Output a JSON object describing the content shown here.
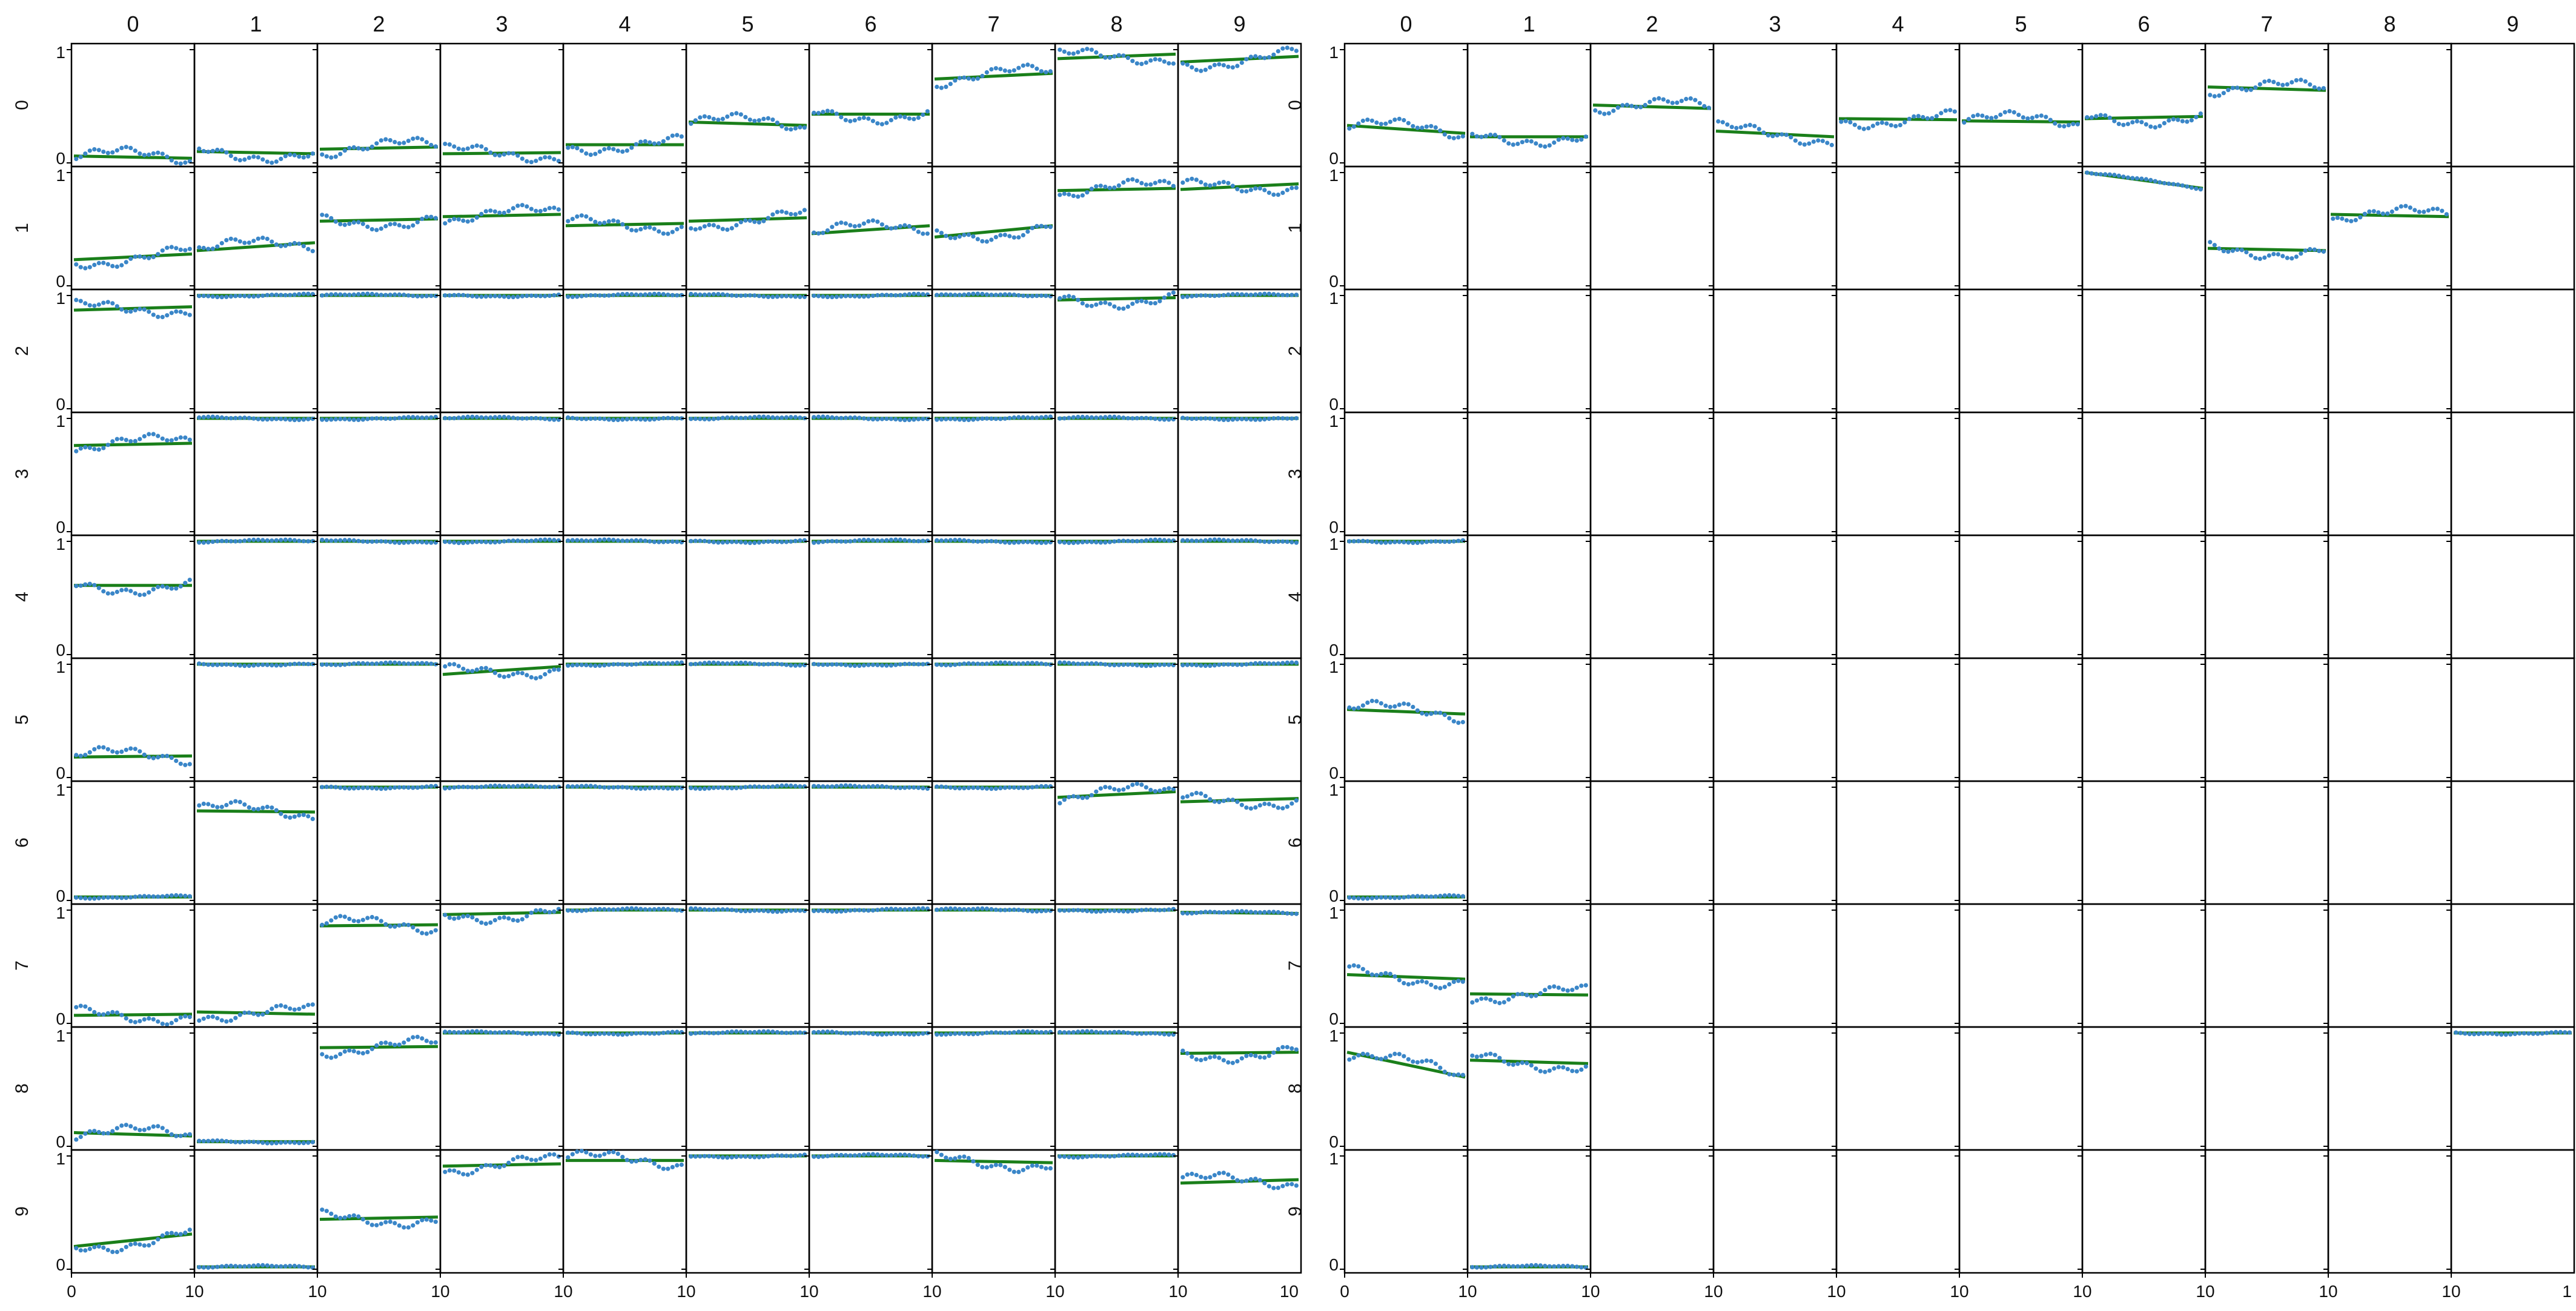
{
  "chart_data": [
    {
      "type": "scatter",
      "layout": "small-multiples grid",
      "columns": [
        "0",
        "1",
        "2",
        "3",
        "4",
        "5",
        "6",
        "7",
        "8",
        "9"
      ],
      "rows": [
        "0",
        "1",
        "2",
        "3",
        "4",
        "5",
        "6",
        "7",
        "8",
        "9"
      ],
      "y_tick_labels": [
        "0",
        "1"
      ],
      "x_tick_labels": [
        "0",
        "10"
      ],
      "ylim": [
        0,
        1
      ],
      "xlim": [
        0,
        10
      ],
      "colors": {
        "points": "#3a86c8",
        "trend": "#1a7f1a",
        "frame": "#000000"
      },
      "cells": [
        [
          [
            0.05,
            0.03
          ],
          [
            0.09,
            0.07
          ],
          [
            0.11,
            0.13
          ],
          [
            0.07,
            0.08
          ],
          [
            0.15,
            0.15
          ],
          [
            0.35,
            0.32
          ],
          [
            0.42,
            0.42
          ],
          [
            0.73,
            0.78
          ],
          [
            0.91,
            0.95
          ],
          [
            0.88,
            0.93
          ]
        ],
        [
          [
            0.22,
            0.27
          ],
          [
            0.3,
            0.37
          ],
          [
            0.56,
            0.58
          ],
          [
            0.6,
            0.62
          ],
          [
            0.52,
            0.54
          ],
          [
            0.56,
            0.59
          ],
          [
            0.45,
            0.52
          ],
          [
            0.42,
            0.52
          ],
          [
            0.83,
            0.85
          ],
          [
            0.84,
            0.89
          ]
        ],
        [
          [
            0.86,
            0.89
          ],
          [
            0.99,
            0.99
          ],
          [
            0.99,
            0.99
          ],
          [
            0.99,
            0.99
          ],
          [
            0.99,
            0.99
          ],
          [
            0.99,
            0.99
          ],
          [
            0.99,
            0.99
          ],
          [
            0.99,
            0.99
          ],
          [
            0.95,
            0.97
          ],
          [
            0.99,
            0.99
          ]
        ],
        [
          [
            0.75,
            0.77
          ],
          [
            0.99,
            0.99
          ],
          [
            0.99,
            0.99
          ],
          [
            0.99,
            0.99
          ],
          [
            0.99,
            0.99
          ],
          [
            0.99,
            0.99
          ],
          [
            0.99,
            0.99
          ],
          [
            0.99,
            0.99
          ],
          [
            0.99,
            0.99
          ],
          [
            0.99,
            0.99
          ]
        ],
        [
          [
            0.6,
            0.6
          ],
          [
            0.99,
            0.99
          ],
          [
            0.99,
            0.99
          ],
          [
            0.99,
            0.99
          ],
          [
            0.99,
            0.99
          ],
          [
            0.99,
            0.99
          ],
          [
            0.99,
            0.99
          ],
          [
            0.99,
            0.99
          ],
          [
            0.99,
            0.99
          ],
          [
            0.99,
            0.99
          ]
        ],
        [
          [
            0.17,
            0.18
          ],
          [
            0.99,
            0.99
          ],
          [
            0.99,
            0.99
          ],
          [
            0.9,
            0.97
          ],
          [
            0.99,
            0.99
          ],
          [
            0.99,
            0.99
          ],
          [
            0.99,
            0.99
          ],
          [
            0.99,
            0.99
          ],
          [
            0.99,
            0.99
          ],
          [
            0.99,
            0.99
          ]
        ],
        [
          [
            0.02,
            0.02
          ],
          [
            0.78,
            0.77
          ],
          [
            0.99,
            0.99
          ],
          [
            0.99,
            0.99
          ],
          [
            0.99,
            0.99
          ],
          [
            0.99,
            0.99
          ],
          [
            0.99,
            0.99
          ],
          [
            0.99,
            0.99
          ],
          [
            0.9,
            0.95
          ],
          [
            0.86,
            0.89
          ]
        ],
        [
          [
            0.06,
            0.07
          ],
          [
            0.09,
            0.07
          ],
          [
            0.85,
            0.86
          ],
          [
            0.95,
            0.97
          ],
          [
            0.99,
            0.99
          ],
          [
            0.99,
            0.99
          ],
          [
            0.99,
            0.99
          ],
          [
            0.99,
            0.99
          ],
          [
            0.99,
            0.99
          ],
          [
            0.97,
            0.96
          ]
        ],
        [
          [
            0.11,
            0.08
          ],
          [
            0.03,
            0.03
          ],
          [
            0.86,
            0.87
          ],
          [
            0.99,
            0.99
          ],
          [
            0.99,
            0.99
          ],
          [
            0.99,
            0.99
          ],
          [
            0.99,
            0.99
          ],
          [
            0.99,
            0.99
          ],
          [
            0.99,
            0.99
          ],
          [
            0.81,
            0.82
          ]
        ],
        [
          [
            0.19,
            0.3
          ],
          [
            0.01,
            0.01
          ],
          [
            0.43,
            0.45
          ],
          [
            0.9,
            0.92
          ],
          [
            0.95,
            0.95
          ],
          [
            0.99,
            0.99
          ],
          [
            0.99,
            0.99
          ],
          [
            0.95,
            0.93
          ],
          [
            0.99,
            0.99
          ],
          [
            0.75,
            0.78
          ]
        ]
      ]
    },
    {
      "type": "scatter",
      "layout": "small-multiples grid",
      "columns": [
        "0",
        "1",
        "2",
        "3",
        "4",
        "5",
        "6",
        "7",
        "8",
        "9"
      ],
      "rows": [
        "0",
        "1",
        "2",
        "3",
        "4",
        "5",
        "6",
        "7",
        "8",
        "9"
      ],
      "y_tick_labels": [
        "0",
        "1"
      ],
      "x_tick_labels": [
        "0",
        "10",
        "1"
      ],
      "ylim": [
        0,
        1
      ],
      "xlim": [
        0,
        10
      ],
      "colors": {
        "points": "#3a86c8",
        "trend": "#1a7f1a",
        "frame": "#000000"
      },
      "cells": [
        [
          [
            0.32,
            0.25
          ],
          [
            0.22,
            0.22
          ],
          [
            0.5,
            0.47
          ],
          [
            0.27,
            0.22
          ],
          [
            0.38,
            0.37
          ],
          [
            0.36,
            0.35
          ],
          [
            0.38,
            0.4
          ],
          [
            0.66,
            0.63
          ],
          null,
          null
        ],
        [
          null,
          null,
          null,
          null,
          null,
          null,
          [
            0.99,
            0.85
          ],
          [
            0.32,
            0.3
          ],
          [
            0.62,
            0.6
          ],
          null
        ],
        [
          null,
          null,
          null,
          null,
          null,
          null,
          null,
          null,
          null,
          null
        ],
        [
          null,
          null,
          null,
          null,
          null,
          null,
          null,
          null,
          null,
          null
        ],
        [
          [
            0.99,
            0.99
          ],
          null,
          null,
          null,
          null,
          null,
          null,
          null,
          null,
          null
        ],
        [
          [
            0.59,
            0.55
          ],
          null,
          null,
          null,
          null,
          null,
          null,
          null,
          null,
          null
        ],
        [
          [
            0.02,
            0.02
          ],
          null,
          null,
          null,
          null,
          null,
          null,
          null,
          null,
          null
        ],
        [
          [
            0.42,
            0.38
          ],
          [
            0.25,
            0.24
          ],
          null,
          null,
          null,
          null,
          null,
          null,
          null,
          null
        ],
        [
          [
            0.82,
            0.6
          ],
          [
            0.75,
            0.72
          ],
          null,
          null,
          null,
          null,
          null,
          null,
          null,
          [
            0.99,
            0.99
          ]
        ],
        [
          null,
          [
            0.01,
            0.01
          ],
          null,
          null,
          null,
          null,
          null,
          null,
          null,
          null
        ]
      ]
    }
  ]
}
